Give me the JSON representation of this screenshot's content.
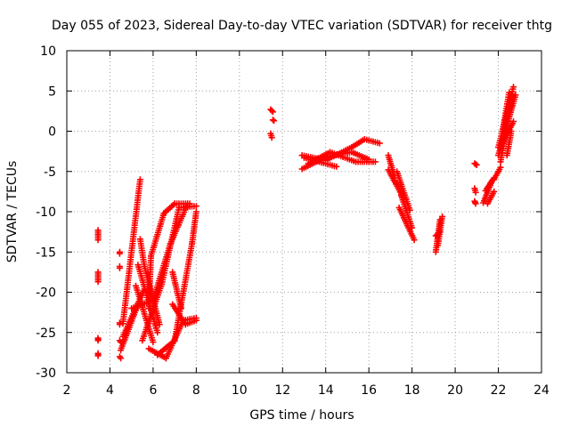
{
  "chart_data": {
    "type": "scatter",
    "title": "Day 055 of 2023, Sidereal Day-to-day VTEC variation (SDTVAR) for receiver thtg",
    "xlabel": "GPS time / hours",
    "ylabel": "SDTVAR / TECUs",
    "xlim": [
      2,
      24
    ],
    "ylim": [
      -30,
      10
    ],
    "xticks": [
      2,
      4,
      6,
      8,
      10,
      12,
      14,
      16,
      18,
      20,
      22,
      24
    ],
    "yticks": [
      -30,
      -25,
      -20,
      -15,
      -10,
      -5,
      0,
      5,
      10
    ],
    "grid": true,
    "marker": "plus",
    "color": "#ff0000",
    "segments": [
      {
        "from": [
          3.45,
          -12.3
        ],
        "to": [
          3.45,
          -13.5
        ]
      },
      {
        "from": [
          3.45,
          -17.5
        ],
        "to": [
          3.45,
          -18.7
        ]
      },
      {
        "from": [
          3.45,
          -25.7
        ],
        "to": [
          3.45,
          -26.0
        ]
      },
      {
        "from": [
          3.45,
          -27.6
        ],
        "to": [
          3.45,
          -27.9
        ]
      },
      {
        "from": [
          4.45,
          -15.0
        ],
        "to": [
          4.45,
          -15.2
        ]
      },
      {
        "from": [
          4.45,
          -16.8
        ],
        "to": [
          4.45,
          -17.0
        ]
      },
      {
        "from": [
          4.45,
          -23.8
        ],
        "to": [
          4.45,
          -24.0
        ]
      },
      {
        "from": [
          4.45,
          -26.0
        ],
        "to": [
          4.5,
          -26.2
        ]
      },
      {
        "from": [
          4.45,
          -28.0
        ],
        "to": [
          4.5,
          -28.2
        ]
      },
      {
        "from": [
          4.6,
          -23.9
        ],
        "to": [
          5.4,
          -6.0
        ]
      },
      {
        "from": [
          4.5,
          -27.2
        ],
        "to": [
          5.3,
          -21.5
        ]
      },
      {
        "from": [
          4.6,
          -25.5
        ],
        "to": [
          5.6,
          -19.6
        ]
      },
      {
        "from": [
          5.2,
          -19.2
        ],
        "to": [
          6.0,
          -26.2
        ]
      },
      {
        "from": [
          5.3,
          -16.6
        ],
        "to": [
          6.2,
          -25.0
        ]
      },
      {
        "from": [
          5.4,
          -13.4
        ],
        "to": [
          5.6,
          -16.8
        ]
      },
      {
        "from": [
          5.6,
          -16.8
        ],
        "to": [
          6.3,
          -24.0
        ]
      },
      {
        "from": [
          5.0,
          -22.0
        ],
        "to": [
          6.0,
          -21.0
        ]
      },
      {
        "from": [
          6.0,
          -21.0
        ],
        "to": [
          6.8,
          -14.0
        ]
      },
      {
        "from": [
          6.8,
          -14.0
        ],
        "to": [
          7.6,
          -9.0
        ]
      },
      {
        "from": [
          5.5,
          -26.0
        ],
        "to": [
          6.4,
          -19.0
        ]
      },
      {
        "from": [
          6.4,
          -19.0
        ],
        "to": [
          7.2,
          -9.5
        ]
      },
      {
        "from": [
          7.2,
          -9.5
        ],
        "to": [
          8.0,
          -9.3
        ]
      },
      {
        "from": [
          5.8,
          -22.0
        ],
        "to": [
          5.9,
          -15.5
        ]
      },
      {
        "from": [
          5.9,
          -15.5
        ],
        "to": [
          6.5,
          -10.2
        ]
      },
      {
        "from": [
          6.5,
          -10.2
        ],
        "to": [
          7.0,
          -9.0
        ]
      },
      {
        "from": [
          7.0,
          -9.0
        ],
        "to": [
          7.7,
          -9.0
        ]
      },
      {
        "from": [
          6.2,
          -27.8
        ],
        "to": [
          7.0,
          -26.0
        ]
      },
      {
        "from": [
          7.0,
          -26.0
        ],
        "to": [
          7.8,
          -14.0
        ]
      },
      {
        "from": [
          7.8,
          -14.0
        ],
        "to": [
          8.0,
          -10.0
        ]
      },
      {
        "from": [
          5.8,
          -27.0
        ],
        "to": [
          6.6,
          -28.2
        ]
      },
      {
        "from": [
          6.6,
          -28.2
        ],
        "to": [
          7.4,
          -23.5
        ]
      },
      {
        "from": [
          7.4,
          -23.5
        ],
        "to": [
          8.0,
          -23.2
        ]
      },
      {
        "from": [
          6.9,
          -21.5
        ],
        "to": [
          7.5,
          -24.0
        ]
      },
      {
        "from": [
          7.5,
          -24.0
        ],
        "to": [
          8.0,
          -23.5
        ]
      },
      {
        "from": [
          6.9,
          -17.5
        ],
        "to": [
          7.3,
          -22.0
        ]
      },
      {
        "from": [
          11.45,
          2.7
        ],
        "to": [
          11.55,
          2.4
        ]
      },
      {
        "from": [
          11.55,
          1.4
        ],
        "to": [
          11.6,
          1.3
        ]
      },
      {
        "from": [
          11.45,
          -0.3
        ],
        "to": [
          11.5,
          -0.8
        ]
      },
      {
        "from": [
          12.9,
          -3.0
        ],
        "to": [
          14.0,
          -3.6
        ]
      },
      {
        "from": [
          14.0,
          -3.6
        ],
        "to": [
          15.2,
          -2.0
        ]
      },
      {
        "from": [
          15.2,
          -2.0
        ],
        "to": [
          15.8,
          -1.0
        ]
      },
      {
        "from": [
          15.8,
          -1.0
        ],
        "to": [
          16.5,
          -1.5
        ]
      },
      {
        "from": [
          12.9,
          -4.7
        ],
        "to": [
          14.0,
          -3.2
        ]
      },
      {
        "from": [
          14.0,
          -3.2
        ],
        "to": [
          15.2,
          -2.6
        ]
      },
      {
        "from": [
          15.2,
          -2.6
        ],
        "to": [
          16.0,
          -3.5
        ]
      },
      {
        "from": [
          13.2,
          -4.0
        ],
        "to": [
          14.2,
          -2.6
        ]
      },
      {
        "from": [
          14.2,
          -2.6
        ],
        "to": [
          15.4,
          -3.8
        ]
      },
      {
        "from": [
          15.4,
          -3.8
        ],
        "to": [
          16.3,
          -3.8
        ]
      },
      {
        "from": [
          13.0,
          -3.3
        ],
        "to": [
          14.5,
          -4.4
        ]
      },
      {
        "from": [
          16.9,
          -3.0
        ],
        "to": [
          17.2,
          -5.8
        ]
      },
      {
        "from": [
          17.3,
          -5.0
        ],
        "to": [
          17.9,
          -9.8
        ]
      },
      {
        "from": [
          16.9,
          -4.8
        ],
        "to": [
          17.6,
          -8.3
        ]
      },
      {
        "from": [
          17.4,
          -9.5
        ],
        "to": [
          18.1,
          -13.5
        ]
      },
      {
        "from": [
          17.5,
          -8.0
        ],
        "to": [
          18.0,
          -12.0
        ]
      },
      {
        "from": [
          17.2,
          -6.2
        ],
        "to": [
          17.5,
          -7.2
        ]
      },
      {
        "from": [
          19.1,
          -15.0
        ],
        "to": [
          19.3,
          -11.0
        ]
      },
      {
        "from": [
          19.2,
          -14.2
        ],
        "to": [
          19.4,
          -10.6
        ]
      },
      {
        "from": [
          19.1,
          -13.0
        ],
        "to": [
          19.3,
          -12.5
        ]
      },
      {
        "from": [
          20.9,
          -4.0
        ],
        "to": [
          21.0,
          -4.2
        ]
      },
      {
        "from": [
          20.9,
          -7.1
        ],
        "to": [
          20.95,
          -7.6
        ]
      },
      {
        "from": [
          20.9,
          -8.7
        ],
        "to": [
          20.95,
          -9.0
        ]
      },
      {
        "from": [
          21.4,
          -7.4
        ],
        "to": [
          21.8,
          -5.8
        ]
      },
      {
        "from": [
          21.3,
          -8.9
        ],
        "to": [
          21.7,
          -6.2
        ]
      },
      {
        "from": [
          21.5,
          -9.0
        ],
        "to": [
          21.8,
          -7.5
        ]
      },
      {
        "from": [
          21.8,
          -6.0
        ],
        "to": [
          22.1,
          -4.5
        ]
      },
      {
        "from": [
          22.0,
          -2.0
        ],
        "to": [
          22.7,
          5.5
        ]
      },
      {
        "from": [
          22.1,
          -3.8
        ],
        "to": [
          22.6,
          3.2
        ]
      },
      {
        "from": [
          22.2,
          -1.5
        ],
        "to": [
          22.7,
          1.2
        ]
      },
      {
        "from": [
          22.0,
          -3.0
        ],
        "to": [
          22.8,
          4.5
        ]
      },
      {
        "from": [
          22.2,
          0.0
        ],
        "to": [
          22.5,
          4.8
        ]
      },
      {
        "from": [
          22.4,
          -3.0
        ],
        "to": [
          22.6,
          0.0
        ]
      }
    ]
  }
}
